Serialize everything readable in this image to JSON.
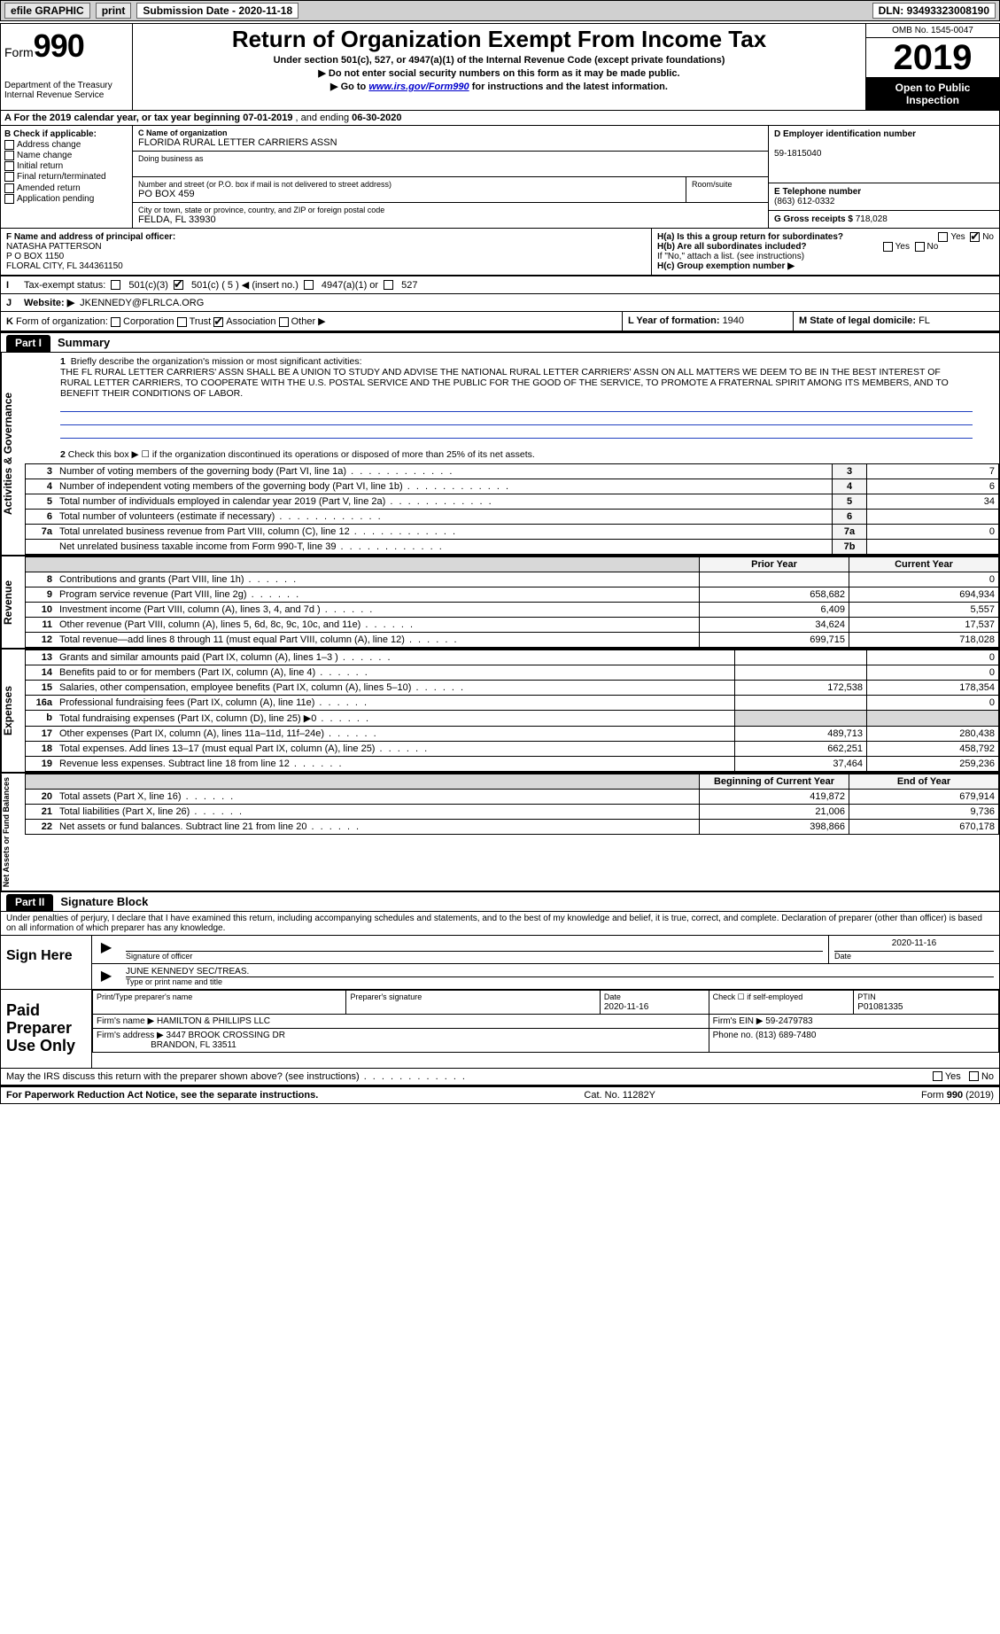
{
  "top_bar": {
    "efile": "efile GRAPHIC",
    "print": "print",
    "sub_label": "Submission Date - ",
    "sub_date": "2020-11-18",
    "dln_label": "DLN: ",
    "dln": "93493323008190"
  },
  "header": {
    "form_label": "Form",
    "form_num": "990",
    "dept1": "Department of the Treasury",
    "dept2": "Internal Revenue Service",
    "title": "Return of Organization Exempt From Income Tax",
    "sub1": "Under section 501(c), 527, or 4947(a)(1) of the Internal Revenue Code (except private foundations)",
    "sub2": "▶ Do not enter social security numbers on this form as it may be made public.",
    "sub3_pre": "▶ Go to ",
    "sub3_link": "www.irs.gov/Form990",
    "sub3_post": " for instructions and the latest information.",
    "omb": "OMB No. 1545-0047",
    "year": "2019",
    "open": "Open to Public Inspection"
  },
  "row_a": {
    "pre": "A For the 2019 calendar year, or tax year beginning ",
    "begin": "07-01-2019",
    "mid": " , and ending ",
    "end": "06-30-2020"
  },
  "col_b": {
    "hdr": "B Check if applicable:",
    "o1": "Address change",
    "o2": "Name change",
    "o3": "Initial return",
    "o4": "Final return/terminated",
    "o5": "Amended return",
    "o6": "Application pending"
  },
  "col_c": {
    "name_lab": "C Name of organization",
    "name": "FLORIDA RURAL LETTER CARRIERS ASSN",
    "dba_lab": "Doing business as",
    "street_lab": "Number and street (or P.O. box if mail is not delivered to street address)",
    "street": "PO BOX 459",
    "room_lab": "Room/suite",
    "city_lab": "City or town, state or province, country, and ZIP or foreign postal code",
    "city": "FELDA, FL  33930"
  },
  "col_d": {
    "lab": "D Employer identification number",
    "val": "59-1815040"
  },
  "col_e": {
    "lab": "E Telephone number",
    "val": "(863) 612-0332"
  },
  "col_g": {
    "lab": "G Gross receipts $ ",
    "val": "718,028"
  },
  "col_f": {
    "lab": "F Name and address of principal officer:",
    "l1": "NATASHA PATTERSON",
    "l2": "P O BOX 1150",
    "l3": "FLORAL CITY, FL  344361150"
  },
  "col_h": {
    "ha": "H(a)  Is this a group return for subordinates?",
    "hb": "H(b)  Are all subordinates included?",
    "hb_note": "If \"No,\" attach a list. (see instructions)",
    "hc": "H(c)  Group exemption number ▶",
    "yes": "Yes",
    "no": "No"
  },
  "row_i": {
    "lab": "I",
    "text": "Tax-exempt status:",
    "o1": "501(c)(3)",
    "o2": "501(c) ( 5 ) ◀ (insert no.)",
    "o3": "4947(a)(1) or",
    "o4": "527"
  },
  "row_j": {
    "lab": "J",
    "text": "Website: ▶",
    "val": "JKENNEDY@FLRLCA.ORG"
  },
  "row_k": {
    "lab": "K",
    "text": "Form of organization:",
    "o1": "Corporation",
    "o2": "Trust",
    "o3": "Association",
    "o4": "Other ▶"
  },
  "row_l": {
    "text": "L Year of formation: ",
    "val": "1940"
  },
  "row_m": {
    "text": "M State of legal domicile: ",
    "val": "FL"
  },
  "part1": {
    "tab": "Part I",
    "title": "Summary",
    "side1": "Activities & Governance",
    "side2": "Revenue",
    "side3": "Expenses",
    "side4": "Net Assets or Fund Balances",
    "l1_lab": "1",
    "l1": "Briefly describe the organization's mission or most significant activities:",
    "mission": "THE FL RURAL LETTER CARRIERS' ASSN SHALL BE A UNION TO STUDY AND ADVISE THE NATIONAL RURAL LETTER CARRIERS' ASSN ON ALL MATTERS WE DEEM TO BE IN THE BEST INTEREST OF RURAL LETTER CARRIERS, TO COOPERATE WITH THE U.S. POSTAL SERVICE AND THE PUBLIC FOR THE GOOD OF THE SERVICE, TO PROMOTE A FRATERNAL SPIRIT AMONG ITS MEMBERS, AND TO BENEFIT THEIR CONDITIONS OF LABOR.",
    "l2": "Check this box ▶ ☐ if the organization discontinued its operations or disposed of more than 25% of its net assets.",
    "rows_gov": [
      {
        "n": "3",
        "t": "Number of voting members of the governing body (Part VI, line 1a)",
        "b": "3",
        "v": "7"
      },
      {
        "n": "4",
        "t": "Number of independent voting members of the governing body (Part VI, line 1b)",
        "b": "4",
        "v": "6"
      },
      {
        "n": "5",
        "t": "Total number of individuals employed in calendar year 2019 (Part V, line 2a)",
        "b": "5",
        "v": "34"
      },
      {
        "n": "6",
        "t": "Total number of volunteers (estimate if necessary)",
        "b": "6",
        "v": ""
      },
      {
        "n": "7a",
        "t": "Total unrelated business revenue from Part VIII, column (C), line 12",
        "b": "7a",
        "v": "0"
      },
      {
        "n": "",
        "t": "Net unrelated business taxable income from Form 990-T, line 39",
        "b": "7b",
        "v": ""
      }
    ],
    "th_prior": "Prior Year",
    "th_curr": "Current Year",
    "rows_rev": [
      {
        "n": "8",
        "t": "Contributions and grants (Part VIII, line 1h)",
        "p": "",
        "c": "0"
      },
      {
        "n": "9",
        "t": "Program service revenue (Part VIII, line 2g)",
        "p": "658,682",
        "c": "694,934"
      },
      {
        "n": "10",
        "t": "Investment income (Part VIII, column (A), lines 3, 4, and 7d )",
        "p": "6,409",
        "c": "5,557"
      },
      {
        "n": "11",
        "t": "Other revenue (Part VIII, column (A), lines 5, 6d, 8c, 9c, 10c, and 11e)",
        "p": "34,624",
        "c": "17,537"
      },
      {
        "n": "12",
        "t": "Total revenue—add lines 8 through 11 (must equal Part VIII, column (A), line 12)",
        "p": "699,715",
        "c": "718,028"
      }
    ],
    "rows_exp": [
      {
        "n": "13",
        "t": "Grants and similar amounts paid (Part IX, column (A), lines 1–3 )",
        "p": "",
        "c": "0"
      },
      {
        "n": "14",
        "t": "Benefits paid to or for members (Part IX, column (A), line 4)",
        "p": "",
        "c": "0"
      },
      {
        "n": "15",
        "t": "Salaries, other compensation, employee benefits (Part IX, column (A), lines 5–10)",
        "p": "172,538",
        "c": "178,354"
      },
      {
        "n": "16a",
        "t": "Professional fundraising fees (Part IX, column (A), line 11e)",
        "p": "",
        "c": "0"
      },
      {
        "n": "b",
        "t": "Total fundraising expenses (Part IX, column (D), line 25) ▶0",
        "p": "SHADE",
        "c": "SHADE"
      },
      {
        "n": "17",
        "t": "Other expenses (Part IX, column (A), lines 11a–11d, 11f–24e)",
        "p": "489,713",
        "c": "280,438"
      },
      {
        "n": "18",
        "t": "Total expenses. Add lines 13–17 (must equal Part IX, column (A), line 25)",
        "p": "662,251",
        "c": "458,792"
      },
      {
        "n": "19",
        "t": "Revenue less expenses. Subtract line 18 from line 12",
        "p": "37,464",
        "c": "259,236"
      }
    ],
    "th_beg": "Beginning of Current Year",
    "th_end": "End of Year",
    "rows_net": [
      {
        "n": "20",
        "t": "Total assets (Part X, line 16)",
        "p": "419,872",
        "c": "679,914"
      },
      {
        "n": "21",
        "t": "Total liabilities (Part X, line 26)",
        "p": "21,006",
        "c": "9,736"
      },
      {
        "n": "22",
        "t": "Net assets or fund balances. Subtract line 21 from line 20",
        "p": "398,866",
        "c": "670,178"
      }
    ]
  },
  "part2": {
    "tab": "Part II",
    "title": "Signature Block",
    "decl": "Under penalties of perjury, I declare that I have examined this return, including accompanying schedules and statements, and to the best of my knowledge and belief, it is true, correct, and complete. Declaration of preparer (other than officer) is based on all information of which preparer has any knowledge.",
    "sign_here": "Sign Here",
    "sig_of": "Signature of officer",
    "sig_date": "2020-11-16",
    "date_lab": "Date",
    "officer": "JUNE KENNEDY  SEC/TREAS.",
    "type_name": "Type or print name and title",
    "paid_prep": "Paid Preparer Use Only",
    "pt_name_lab": "Print/Type preparer's name",
    "pt_sig_lab": "Preparer's signature",
    "pt_date_lab": "Date",
    "pt_date": "2020-11-16",
    "check_self": "Check ☐ if self-employed",
    "ptin_lab": "PTIN",
    "ptin": "P01081335",
    "firm_name_lab": "Firm's name    ▶",
    "firm_name": "HAMILTON & PHILLIPS LLC",
    "firm_ein_lab": "Firm's EIN ▶",
    "firm_ein": "59-2479783",
    "firm_addr_lab": "Firm's address ▶",
    "firm_addr1": "3447 BROOK CROSSING DR",
    "firm_addr2": "BRANDON, FL  33511",
    "phone_lab": "Phone no. ",
    "phone": "(813) 689-7480",
    "may_irs": "May the IRS discuss this return with the preparer shown above? (see instructions)"
  },
  "footer": {
    "pra": "For Paperwork Reduction Act Notice, see the separate instructions.",
    "cat": "Cat. No. 11282Y",
    "form": "Form 990 (2019)"
  },
  "colors": {
    "link": "#0000cc",
    "rule": "#2040c0",
    "shade": "#d8d8d8"
  }
}
